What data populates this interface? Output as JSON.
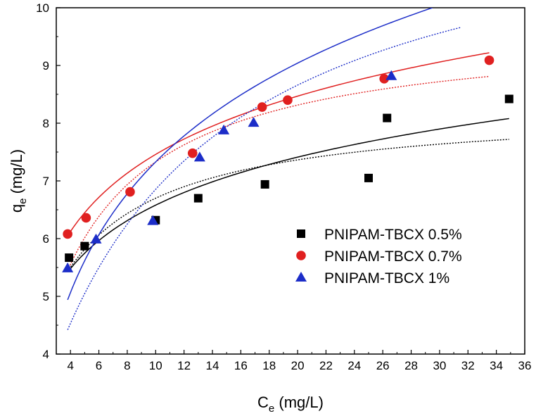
{
  "chart_data": {
    "type": "scatter",
    "title": "",
    "xlabel": {
      "main": "C",
      "sub": "e",
      "unit": " (mg/L)"
    },
    "ylabel": {
      "main": "q",
      "sub": "e",
      "unit": " (mg/L)"
    },
    "xlim": [
      3,
      36
    ],
    "ylim": [
      4,
      10
    ],
    "xticks": [
      4,
      6,
      8,
      10,
      12,
      14,
      16,
      18,
      20,
      22,
      24,
      26,
      28,
      30,
      32,
      34,
      36
    ],
    "yticks": [
      4,
      5,
      6,
      7,
      8,
      9,
      10
    ],
    "grid": false,
    "legend_position": "center-right",
    "series": [
      {
        "name": "PNIPAM-TBCX 0.5%",
        "color": "#000000",
        "marker": "square",
        "x": [
          3.9,
          5.0,
          10.0,
          13.0,
          17.7,
          25.0,
          26.3,
          34.9
        ],
        "y": [
          5.67,
          5.87,
          6.32,
          6.7,
          6.94,
          7.05,
          8.09,
          8.42
        ],
        "fit_solid": {
          "x1": 3.9,
          "x2": 34.9,
          "y1": 5.45,
          "y2": 8.08
        },
        "fit_dotted": {
          "x1": 3.9,
          "x2": 34.9,
          "y1": 5.47,
          "y2": 7.72
        }
      },
      {
        "name": "PNIPAM-TBCX 0.7%",
        "color": "#e02020",
        "marker": "circle",
        "x": [
          3.8,
          5.1,
          8.2,
          12.6,
          17.5,
          19.3,
          26.1,
          33.5
        ],
        "y": [
          6.08,
          6.36,
          6.81,
          7.48,
          8.28,
          8.4,
          8.77,
          9.09
        ],
        "fit_solid": {
          "x1": 3.8,
          "x2": 33.5,
          "y1": 6.05,
          "y2": 9.22
        },
        "fit_dotted": {
          "x1": 3.8,
          "x2": 33.5,
          "y1": 5.45,
          "y2": 8.81
        }
      },
      {
        "name": "PNIPAM-TBCX 1%",
        "color": "#1c2dc8",
        "marker": "triangle",
        "x": [
          3.8,
          5.8,
          9.8,
          13.1,
          14.8,
          16.9,
          26.6
        ],
        "y": [
          5.49,
          5.99,
          6.31,
          7.41,
          7.88,
          8.01,
          8.82
        ],
        "fit_solid": {
          "x1": 3.8,
          "x2": 29.5,
          "y1": 4.94,
          "y2": 10.0
        },
        "fit_dotted": {
          "x1": 3.8,
          "x2": 31.5,
          "y1": 4.42,
          "y2": 9.66
        }
      }
    ]
  }
}
